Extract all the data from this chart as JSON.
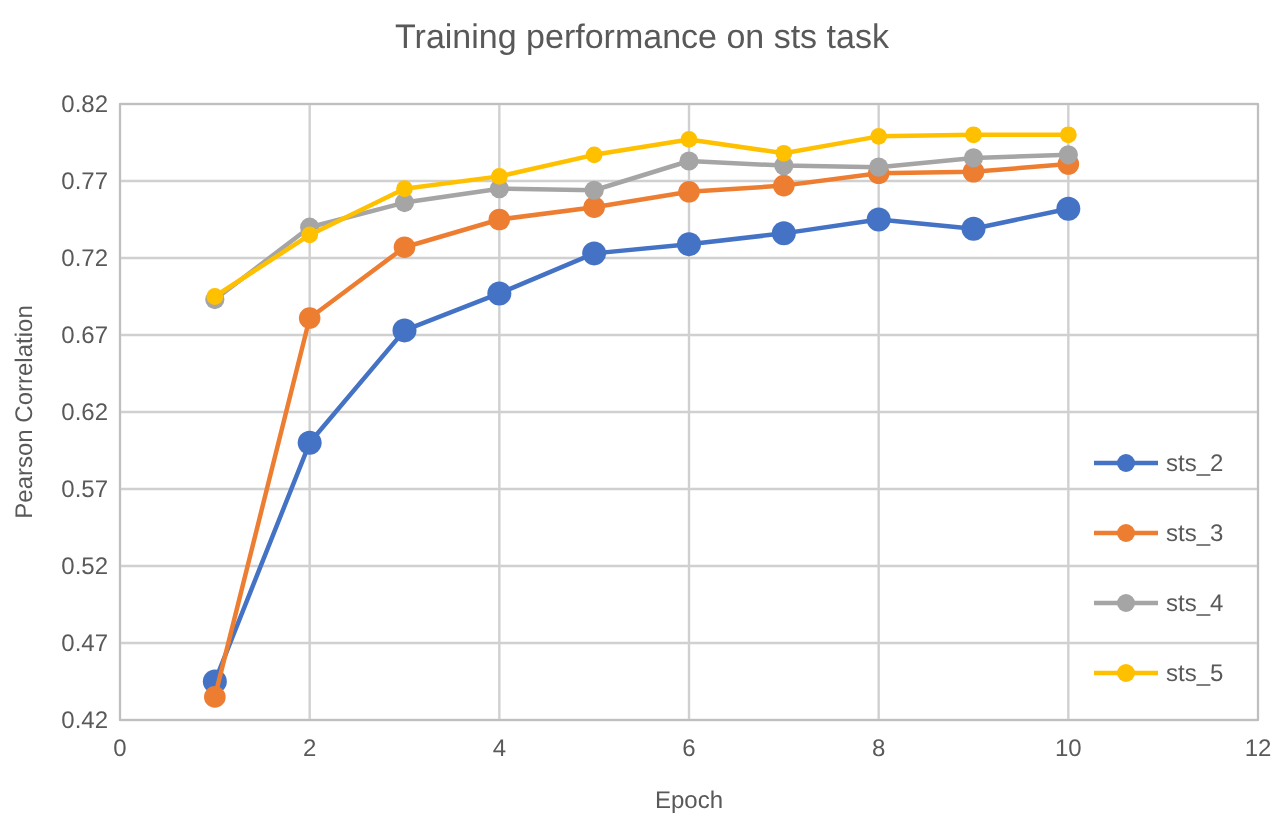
{
  "chart_data": {
    "type": "line",
    "title": "Training performance on sts task",
    "xlabel": "Epoch",
    "ylabel": "Pearson Correlation",
    "x": [
      1,
      2,
      3,
      4,
      5,
      6,
      7,
      8,
      9,
      10
    ],
    "xlim": [
      0,
      12
    ],
    "xticks": [
      0,
      2,
      4,
      6,
      8,
      10,
      12
    ],
    "ylim": [
      0.42,
      0.82
    ],
    "yticks": [
      0.42,
      0.47,
      0.52,
      0.57,
      0.62,
      0.67,
      0.72,
      0.77,
      0.82
    ],
    "grid": true,
    "legend": "bottom right",
    "marker": "circle",
    "line_style": "solid",
    "series": [
      {
        "name": "sts_2",
        "color": "#4472c4",
        "values": [
          0.445,
          0.6,
          0.673,
          0.697,
          0.723,
          0.729,
          0.736,
          0.745,
          0.739,
          0.752
        ]
      },
      {
        "name": "sts_3",
        "color": "#ed7d31",
        "values": [
          0.435,
          0.681,
          0.727,
          0.745,
          0.753,
          0.763,
          0.767,
          0.775,
          0.776,
          0.781
        ]
      },
      {
        "name": "sts_4",
        "color": "#a5a5a5",
        "values": [
          0.693,
          0.74,
          0.756,
          0.765,
          0.764,
          0.783,
          0.78,
          0.779,
          0.785,
          0.787
        ]
      },
      {
        "name": "sts_5",
        "color": "#ffc000",
        "values": [
          0.695,
          0.735,
          0.765,
          0.773,
          0.787,
          0.797,
          0.788,
          0.799,
          0.8,
          0.8
        ]
      }
    ]
  }
}
